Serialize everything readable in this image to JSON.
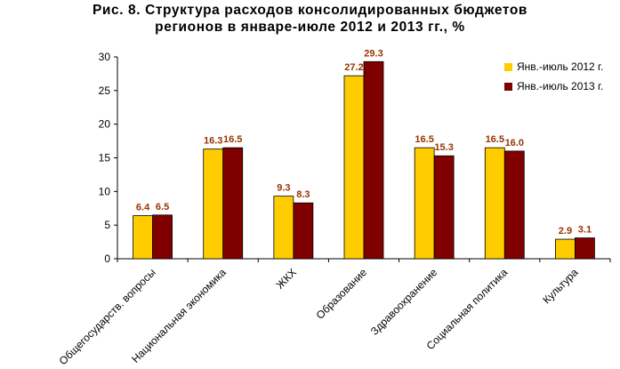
{
  "chart_data": {
    "type": "bar",
    "title_line1": "Рис. 8. Структура расходов консолидированных бюджетов",
    "title_line2": "регионов в январе-июле 2012 и 2013 гг., %",
    "categories": [
      "Общегосударств. вопросы",
      "Национальная экономика",
      "ЖКХ",
      "Образование",
      "Здравоохранение",
      "Социальная политика",
      "Культура"
    ],
    "series": [
      {
        "name": "Янв.-июль 2012 г.",
        "color": "#FFCC00",
        "values": [
          6.4,
          16.3,
          9.3,
          27.2,
          16.5,
          16.5,
          2.9
        ],
        "labels": [
          "6.4",
          "16.3",
          "9.3",
          "27.2",
          "16.5",
          "16.5",
          "2.9"
        ]
      },
      {
        "name": "Янв.-июль 2013 г.",
        "color": "#800000",
        "values": [
          6.5,
          16.5,
          8.3,
          29.3,
          15.3,
          16.0,
          3.1
        ],
        "labels": [
          "6.5",
          "16.5",
          "8.3",
          "29.3",
          "15.3",
          "16.0",
          "3.1"
        ]
      }
    ],
    "ylim": [
      0,
      30
    ],
    "yticks": [
      "0",
      "5",
      "10",
      "15",
      "20",
      "25",
      "30"
    ],
    "data_label_color": "#993300",
    "legend_position": "right",
    "grid": false
  }
}
